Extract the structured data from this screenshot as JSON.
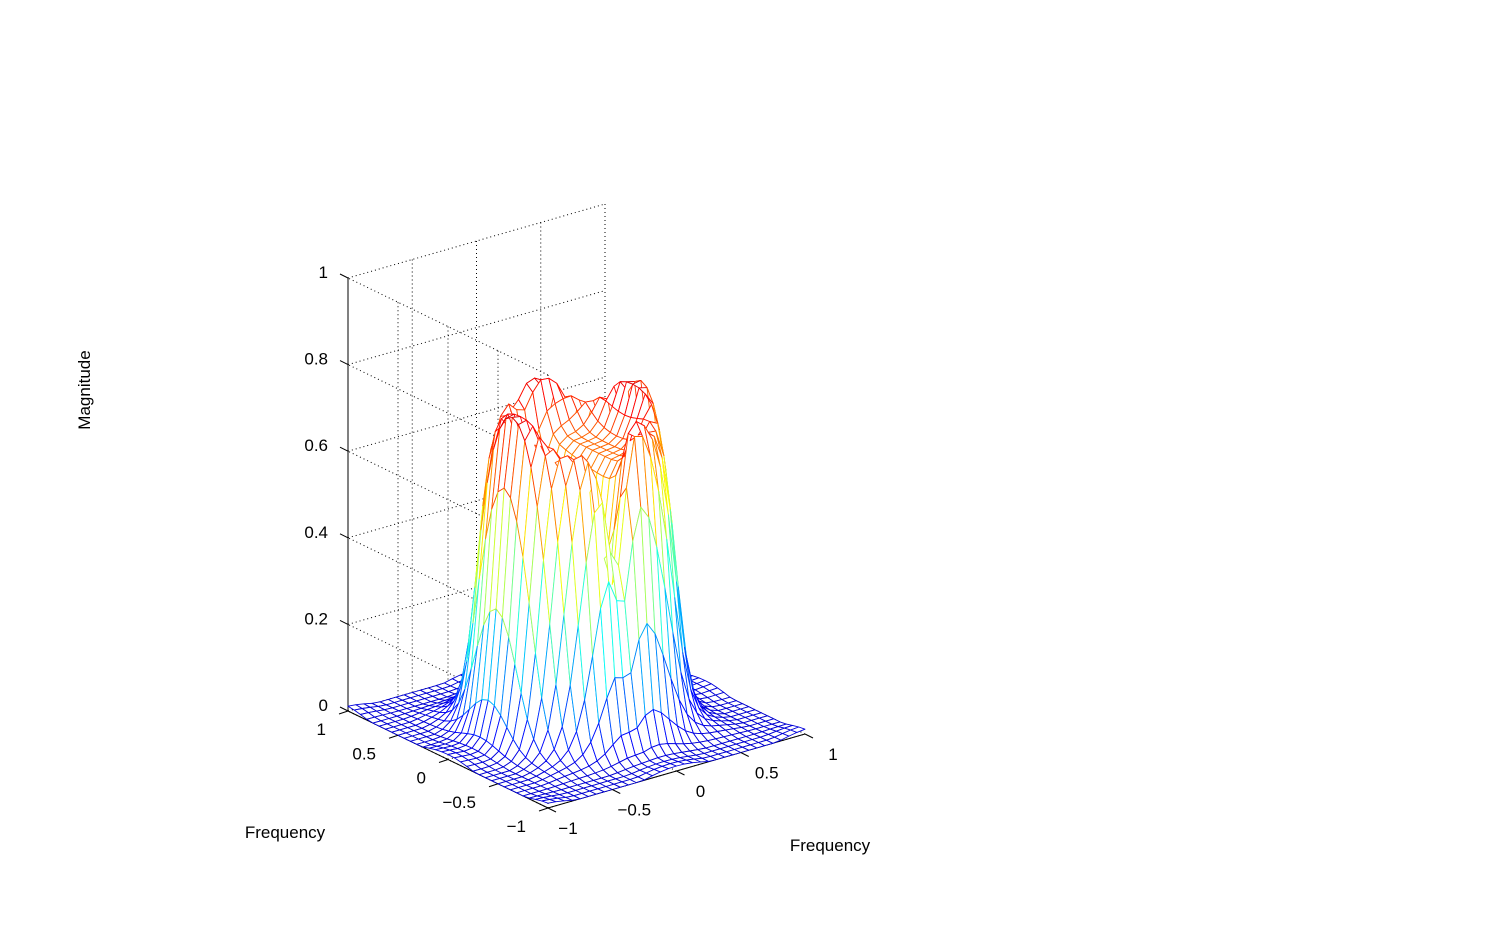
{
  "chart_data": {
    "type": "surface",
    "title": "",
    "xlabel": "Frequency",
    "ylabel": "Frequency",
    "zlabel": "Magnitude",
    "xlim": [
      -1,
      1
    ],
    "ylim": [
      -1,
      1
    ],
    "zlim": [
      0,
      1
    ],
    "x_ticks": [
      "−1",
      "−0.5",
      "0",
      "0.5",
      "1"
    ],
    "y_ticks": [
      "−1",
      "−0.5",
      "0",
      "0.5",
      "1"
    ],
    "z_ticks": [
      "0",
      "0.2",
      "0.4",
      "0.6",
      "0.8",
      "1"
    ],
    "grid": true,
    "mesh_resolution": 32,
    "colormap": [
      "#00008f",
      "#0000ff",
      "#00ffff",
      "#ffff00",
      "#ff0000",
      "#800000"
    ],
    "surface": {
      "description": "circular passband filter frequency response",
      "passband_radius": 0.62,
      "passband_level": 0.62,
      "ripple_peak": 0.82,
      "notch_axis": "x",
      "notch_center": -0.08
    }
  }
}
